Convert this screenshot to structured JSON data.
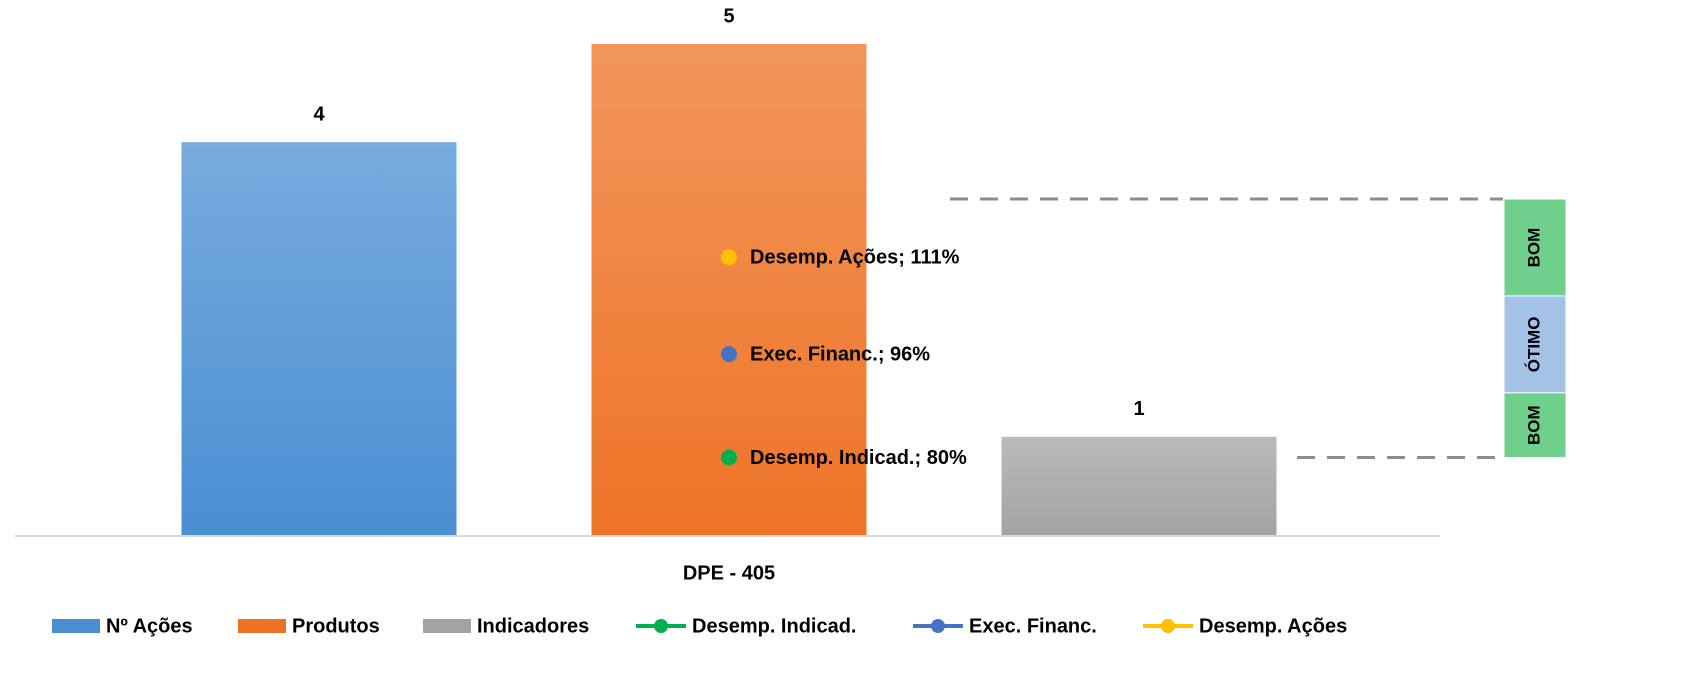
{
  "chart_data": {
    "type": "bar",
    "categories": [
      "DPE - 405"
    ],
    "ylim": [
      0,
      5
    ],
    "y2lim": [
      68,
      144
    ],
    "series": [
      {
        "name": "Nº Ações",
        "color": "#4a8fd3",
        "values": [
          4
        ]
      },
      {
        "name": "Produtos",
        "color": "#ee7326",
        "values": [
          5
        ]
      },
      {
        "name": "Indicadores",
        "color": "#a3a3a3",
        "values": [
          1
        ]
      },
      {
        "name": "Desemp. Indicad.",
        "color": "#00b050",
        "axis": "y2",
        "values": [
          80
        ],
        "value_labels": [
          "Desemp. Indicad.; 80%"
        ]
      },
      {
        "name": "Exec. Financ.",
        "color": "#4472c4",
        "axis": "y2",
        "values": [
          96
        ],
        "value_labels": [
          "Exec. Financ.; 96%"
        ]
      },
      {
        "name": "Desemp. Ações",
        "color": "#ffc000",
        "axis": "y2",
        "values": [
          111
        ],
        "value_labels": [
          "Desemp. Ações; 111%"
        ]
      }
    ],
    "reference_lines": [
      120,
      80
    ],
    "bands": [
      {
        "label": "BOM",
        "from": 105,
        "to": 120,
        "color": "#6fd08c"
      },
      {
        "label": "ÓTIMO",
        "from": 90,
        "to": 105,
        "color": "#a4c2e6"
      },
      {
        "label": "BOM",
        "from": 80,
        "to": 90,
        "color": "#6fd08c"
      }
    ]
  }
}
